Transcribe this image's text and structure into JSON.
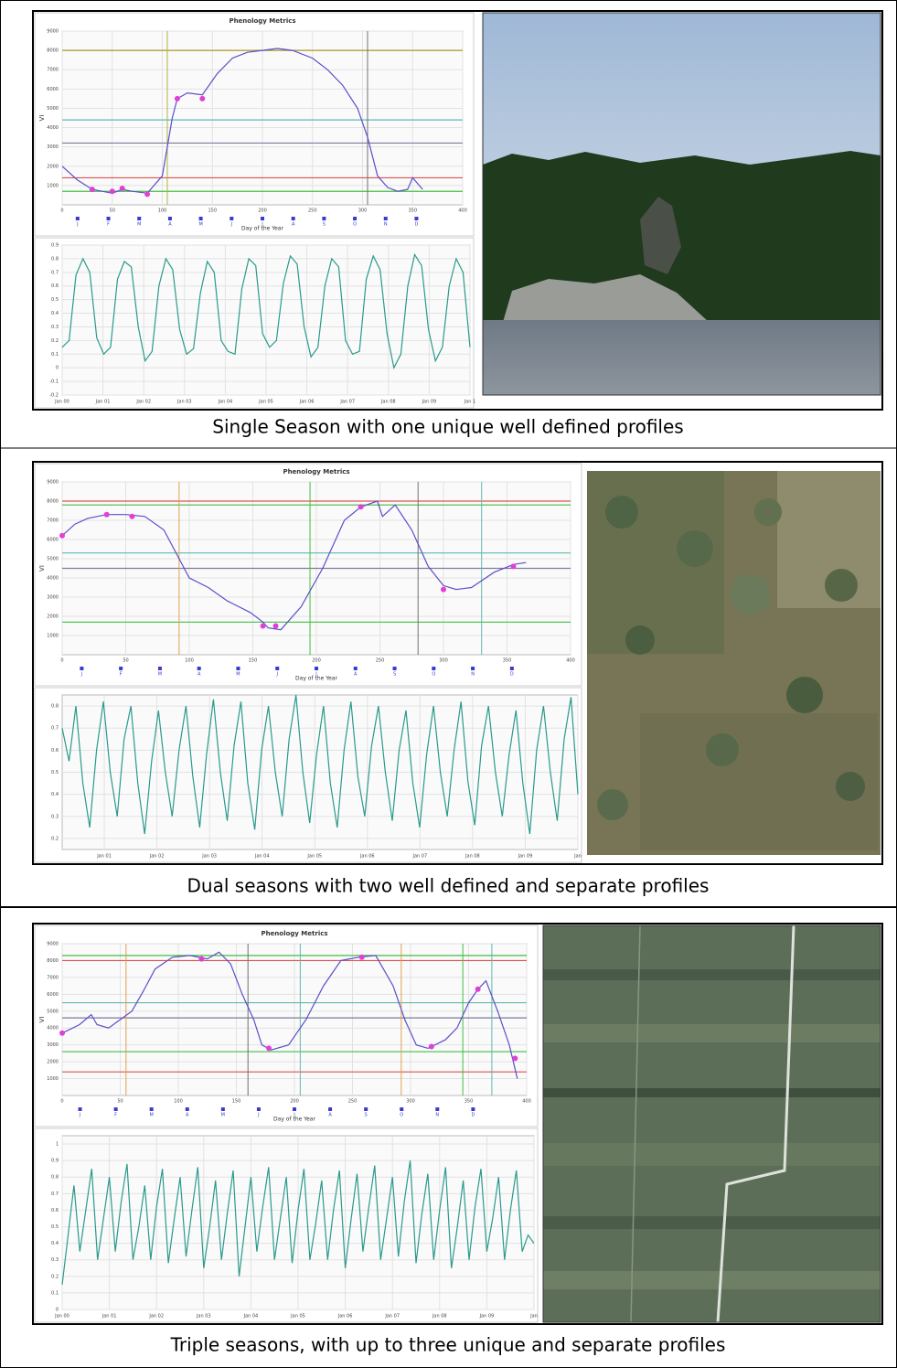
{
  "panels": [
    {
      "caption": "Single Season with one unique well defined profiles",
      "phenology": {
        "type": "line",
        "title": "Phenology Metrics",
        "x_label": "Day of the Year",
        "y_label": "VI",
        "xlim": [
          0,
          400
        ],
        "ylim": [
          0,
          9000
        ],
        "xticks": [
          0,
          50,
          100,
          150,
          200,
          250,
          300,
          350,
          400
        ],
        "yticks": [
          1000,
          2000,
          3000,
          4000,
          5000,
          6000,
          7000,
          8000,
          9000
        ],
        "months": [
          "J",
          "F",
          "M",
          "A",
          "M",
          "J",
          "J",
          "A",
          "S",
          "O",
          "N",
          "D"
        ],
        "x": [
          0,
          15,
          30,
          40,
          50,
          60,
          70,
          85,
          100,
          110,
          115,
          125,
          140,
          155,
          170,
          185,
          200,
          215,
          230,
          250,
          265,
          280,
          295,
          305,
          315,
          325,
          335,
          345,
          350,
          360
        ],
        "values": [
          2000,
          1300,
          800,
          700,
          600,
          800,
          700,
          600,
          1500,
          4500,
          5500,
          5800,
          5700,
          6800,
          7600,
          7900,
          8000,
          8100,
          8000,
          7600,
          7000,
          6200,
          5000,
          3500,
          1500,
          900,
          700,
          800,
          1400,
          800
        ],
        "color": "#5b4fc9",
        "points": {
          "x": [
            30,
            50,
            60,
            85,
            115,
            140
          ],
          "values": [
            800,
            700,
            850,
            550,
            5500,
            5500
          ],
          "color": "#e040d8"
        },
        "hlines": [
          {
            "value": 8000,
            "color": "#a89a2a"
          },
          {
            "value": 4400,
            "color": "#5fb8b0"
          },
          {
            "value": 3200,
            "color": "#7a7aa0"
          },
          {
            "value": 1400,
            "color": "#e05050"
          },
          {
            "value": 700,
            "color": "#40c040"
          }
        ],
        "vlines": [
          {
            "value": 105,
            "color": "#b0b040"
          },
          {
            "value": 305,
            "color": "#707070"
          }
        ]
      },
      "time_series": {
        "type": "line",
        "categories": [
          "Jan 00",
          "Jan 01",
          "Jan 02",
          "Jan 03",
          "Jan 04",
          "Jan 05",
          "Jan 06",
          "Jan 07",
          "Jan 08",
          "Jan 09",
          "Jan 1"
        ],
        "ylim": [
          -0.2,
          0.9
        ],
        "yticks": [
          -0.2,
          -0.1,
          0,
          0.1,
          0.2,
          0.3,
          0.4,
          0.5,
          0.6,
          0.7,
          0.8,
          0.9
        ],
        "values": [
          0.15,
          0.2,
          0.68,
          0.8,
          0.7,
          0.22,
          0.1,
          0.15,
          0.65,
          0.78,
          0.74,
          0.3,
          0.05,
          0.12,
          0.6,
          0.8,
          0.72,
          0.28,
          0.1,
          0.14,
          0.55,
          0.78,
          0.7,
          0.2,
          0.12,
          0.1,
          0.58,
          0.8,
          0.75,
          0.25,
          0.15,
          0.2,
          0.62,
          0.82,
          0.76,
          0.3,
          0.08,
          0.15,
          0.6,
          0.8,
          0.74,
          0.2,
          0.1,
          0.12,
          0.65,
          0.82,
          0.72,
          0.25,
          0,
          0.1,
          0.6,
          0.83,
          0.75,
          0.28,
          0.05,
          0.15,
          0.6,
          0.8,
          0.7,
          0.15
        ],
        "color": "#2a9a8c"
      }
    },
    {
      "caption": "Dual seasons with two well defined and separate profiles",
      "phenology": {
        "type": "line",
        "title": "Phenology Metrics",
        "x_label": "Day of the Year",
        "y_label": "VI",
        "xlim": [
          0,
          400
        ],
        "ylim": [
          0,
          9000
        ],
        "xticks": [
          0,
          50,
          100,
          150,
          200,
          250,
          300,
          350,
          400
        ],
        "yticks": [
          1000,
          2000,
          3000,
          4000,
          5000,
          6000,
          7000,
          8000,
          9000
        ],
        "months": [
          "J",
          "F",
          "M",
          "A",
          "M",
          "J",
          "J",
          "A",
          "S",
          "O",
          "N",
          "D"
        ],
        "x": [
          0,
          10,
          20,
          35,
          50,
          65,
          80,
          92,
          100,
          115,
          130,
          148,
          158,
          162,
          172,
          188,
          205,
          222,
          235,
          248,
          252,
          262,
          275,
          288,
          300,
          310,
          322,
          340,
          355,
          365
        ],
        "values": [
          6200,
          6800,
          7100,
          7300,
          7300,
          7200,
          6500,
          5000,
          4000,
          3500,
          2800,
          2200,
          1700,
          1400,
          1300,
          2500,
          4500,
          7000,
          7700,
          8000,
          7200,
          7800,
          6500,
          4600,
          3600,
          3400,
          3500,
          4300,
          4700,
          4800
        ],
        "color": "#5b4fc9",
        "points": {
          "x": [
            0,
            35,
            55,
            158,
            168,
            235,
            300,
            355
          ],
          "values": [
            6200,
            7300,
            7200,
            1500,
            1500,
            7700,
            3400,
            4600
          ],
          "color": "#e040d8"
        },
        "hlines": [
          {
            "value": 8000,
            "color": "#e05050"
          },
          {
            "value": 7800,
            "color": "#40c040"
          },
          {
            "value": 5300,
            "color": "#5fb8b0"
          },
          {
            "value": 4500,
            "color": "#7a7aa0"
          },
          {
            "value": 1700,
            "color": "#40c040"
          }
        ],
        "vlines": [
          {
            "value": 92,
            "color": "#e0a050"
          },
          {
            "value": 195,
            "color": "#40c040"
          },
          {
            "value": 280,
            "color": "#707070"
          },
          {
            "value": 330,
            "color": "#5fb8b0"
          }
        ]
      },
      "time_series": {
        "type": "line",
        "categories": [
          "Jan 01",
          "Jan 02",
          "Jan 03",
          "Jan 04",
          "Jan 05",
          "Jan 06",
          "Jan 07",
          "Jan 08",
          "Jan 09",
          "Jan"
        ],
        "ylim": [
          0.15,
          0.85
        ],
        "yticks": [
          0.2,
          0.3,
          0.4,
          0.5,
          0.6,
          0.7,
          0.8
        ],
        "values": [
          0.7,
          0.55,
          0.8,
          0.45,
          0.25,
          0.6,
          0.82,
          0.5,
          0.3,
          0.65,
          0.8,
          0.45,
          0.22,
          0.55,
          0.78,
          0.5,
          0.3,
          0.6,
          0.8,
          0.48,
          0.25,
          0.58,
          0.83,
          0.5,
          0.28,
          0.62,
          0.82,
          0.45,
          0.24,
          0.6,
          0.8,
          0.5,
          0.3,
          0.65,
          0.85,
          0.5,
          0.27,
          0.58,
          0.8,
          0.45,
          0.25,
          0.6,
          0.82,
          0.48,
          0.3,
          0.62,
          0.8,
          0.5,
          0.28,
          0.6,
          0.78,
          0.45,
          0.25,
          0.58,
          0.8,
          0.5,
          0.3,
          0.6,
          0.82,
          0.46,
          0.26,
          0.62,
          0.8,
          0.5,
          0.3,
          0.58,
          0.78,
          0.45,
          0.22,
          0.6,
          0.8,
          0.5,
          0.28,
          0.65,
          0.84,
          0.4
        ],
        "color": "#2a9a8c"
      }
    },
    {
      "caption": "Triple seasons, with up to three unique and separate profiles",
      "phenology": {
        "type": "line",
        "title": "Phenology Metrics",
        "x_label": "Day of the Year",
        "y_label": "VI",
        "xlim": [
          0,
          400
        ],
        "ylim": [
          0,
          9000
        ],
        "xticks": [
          0,
          50,
          100,
          150,
          200,
          250,
          300,
          350,
          400
        ],
        "yticks": [
          1000,
          2000,
          3000,
          4000,
          5000,
          6000,
          7000,
          8000,
          9000
        ],
        "months": [
          "J",
          "F",
          "M",
          "A",
          "M",
          "J",
          "J",
          "A",
          "S",
          "O",
          "N",
          "D"
        ],
        "x": [
          0,
          15,
          25,
          30,
          40,
          50,
          60,
          70,
          80,
          95,
          110,
          125,
          135,
          145,
          155,
          165,
          172,
          180,
          195,
          210,
          225,
          240,
          255,
          270,
          285,
          295,
          305,
          315,
          330,
          340,
          350,
          358,
          365,
          375,
          385,
          392
        ],
        "values": [
          3700,
          4200,
          4800,
          4200,
          4000,
          4500,
          5000,
          6200,
          7500,
          8200,
          8300,
          8100,
          8500,
          7800,
          6000,
          4500,
          3000,
          2700,
          3000,
          4500,
          6500,
          8000,
          8200,
          8300,
          6500,
          4500,
          3000,
          2800,
          3300,
          4000,
          5500,
          6300,
          6800,
          5000,
          3000,
          1000
        ],
        "color": "#5b4fc9",
        "points": {
          "x": [
            0,
            120,
            178,
            258,
            318,
            358,
            390
          ],
          "values": [
            3700,
            8100,
            2800,
            8200,
            2900,
            6300,
            2200
          ],
          "color": "#e040d8"
        },
        "hlines": [
          {
            "value": 8300,
            "color": "#40c040"
          },
          {
            "value": 8000,
            "color": "#e05050"
          },
          {
            "value": 5500,
            "color": "#5fb8b0"
          },
          {
            "value": 4600,
            "color": "#7a7aa0"
          },
          {
            "value": 2600,
            "color": "#40c040"
          },
          {
            "value": 1400,
            "color": "#e05050"
          }
        ],
        "vlines": [
          {
            "value": 55,
            "color": "#e0a050"
          },
          {
            "value": 160,
            "color": "#707070"
          },
          {
            "value": 205,
            "color": "#5fb8b0"
          },
          {
            "value": 292,
            "color": "#e0a050"
          },
          {
            "value": 345,
            "color": "#40c040"
          },
          {
            "value": 370,
            "color": "#5fb8b0"
          }
        ]
      },
      "time_series": {
        "type": "line",
        "categories": [
          "Jan 00",
          "Jan 01",
          "Jan 02",
          "Jan 03",
          "Jan 04",
          "Jan 05",
          "Jan 06",
          "Jan 07",
          "Jan 08",
          "Jan 09",
          "Jan"
        ],
        "ylim": [
          0,
          1.05
        ],
        "yticks": [
          0,
          0.1,
          0.2,
          0.3,
          0.4,
          0.5,
          0.6,
          0.7,
          0.8,
          0.9,
          1
        ],
        "values": [
          0.15,
          0.45,
          0.75,
          0.35,
          0.6,
          0.85,
          0.3,
          0.55,
          0.8,
          0.35,
          0.65,
          0.88,
          0.3,
          0.5,
          0.75,
          0.3,
          0.62,
          0.85,
          0.28,
          0.55,
          0.8,
          0.32,
          0.6,
          0.86,
          0.25,
          0.5,
          0.78,
          0.3,
          0.58,
          0.84,
          0.2,
          0.5,
          0.8,
          0.35,
          0.62,
          0.86,
          0.3,
          0.55,
          0.8,
          0.28,
          0.6,
          0.85,
          0.3,
          0.52,
          0.78,
          0.3,
          0.6,
          0.84,
          0.25,
          0.55,
          0.82,
          0.35,
          0.62,
          0.87,
          0.3,
          0.55,
          0.8,
          0.32,
          0.65,
          0.9,
          0.28,
          0.58,
          0.82,
          0.3,
          0.6,
          0.86,
          0.25,
          0.5,
          0.78,
          0.3,
          0.62,
          0.85,
          0.35,
          0.55,
          0.8,
          0.3,
          0.6,
          0.84,
          0.35,
          0.45,
          0.4
        ],
        "color": "#2a9a8c"
      }
    }
  ]
}
